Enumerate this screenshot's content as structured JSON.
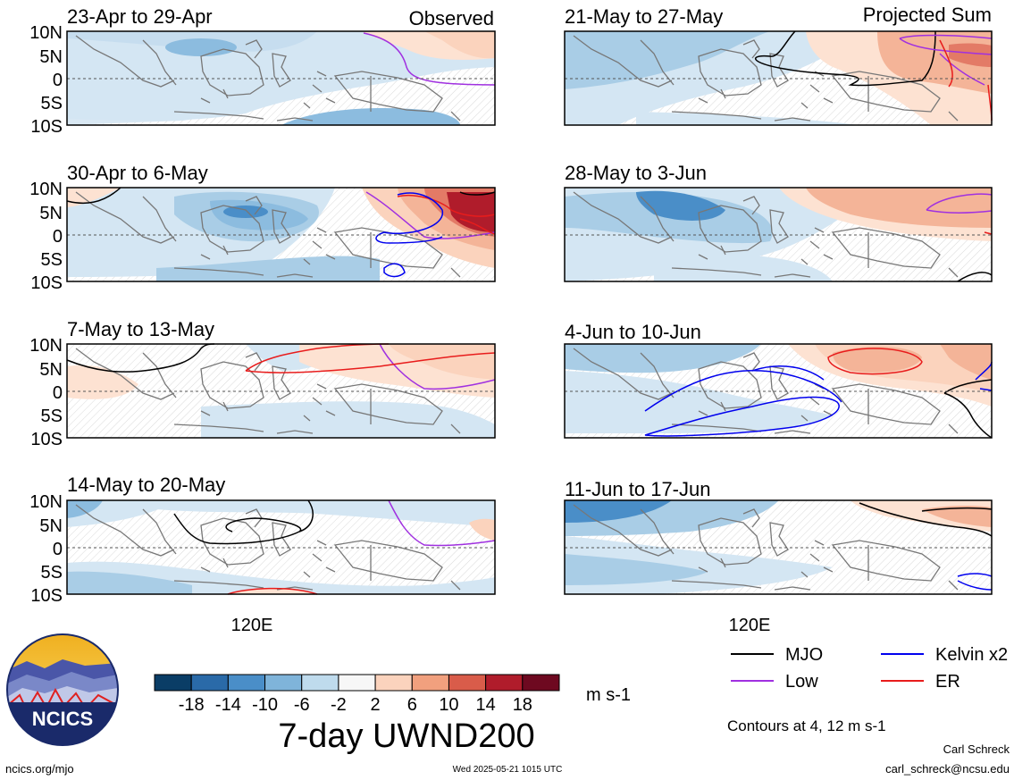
{
  "panel_labels": {
    "observed": "Observed",
    "projected": "Projected Sum"
  },
  "panels": [
    {
      "title": "23-Apr to 29-Apr"
    },
    {
      "title": "21-May to 27-May"
    },
    {
      "title": "30-Apr to 6-May"
    },
    {
      "title": "28-May to 3-Jun"
    },
    {
      "title": "7-May to 13-May"
    },
    {
      "title": "4-Jun to 10-Jun"
    },
    {
      "title": "14-May to 20-May"
    },
    {
      "title": "11-Jun to 17-Jun"
    }
  ],
  "lat_ticks": [
    "10N",
    "5N",
    "0",
    "5S",
    "10S"
  ],
  "lon_tick": "120E",
  "colorbar": {
    "tick_labels": [
      "-18",
      "-14",
      "-10",
      "-6",
      "-2",
      "2",
      "6",
      "10",
      "14",
      "18"
    ],
    "colors": [
      "#0a3d66",
      "#2a6aa8",
      "#4a8ec8",
      "#7fb4da",
      "#bfdbed",
      "#f7f7f7",
      "#fbd3bd",
      "#f1a07e",
      "#d95c4a",
      "#b01c2b",
      "#6e0920"
    ],
    "units": "m s-1"
  },
  "variable_title": "7-day UWND200",
  "legend": {
    "items": [
      {
        "label": "MJO",
        "color": "#000000"
      },
      {
        "label": "Kelvin x2",
        "color": "#0000ee"
      },
      {
        "label": "Low",
        "color": "#a030e0"
      },
      {
        "label": "ER",
        "color": "#e81c1c"
      }
    ],
    "note": "Contours at 4, 12 m s-1"
  },
  "logo": {
    "text": "NCICS"
  },
  "footer": {
    "url": "ncics.org/mjo",
    "timestamp": "Wed 2025-05-21 1015 UTC",
    "author": "Carl Schreck",
    "email": "carl_schreck@ncsu.edu"
  }
}
